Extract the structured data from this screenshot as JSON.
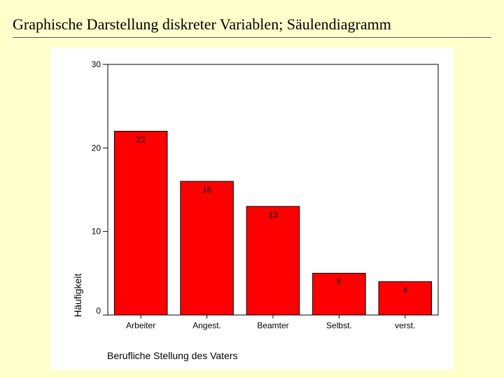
{
  "slide": {
    "title": "Graphische Darstellung diskreter Variablen; Säulendiagramm"
  },
  "chart_data": {
    "type": "bar",
    "categories": [
      "Arbeiter",
      "Angest.",
      "Beamter",
      "Selbst.",
      "verst."
    ],
    "values": [
      22,
      16,
      13,
      5,
      4
    ],
    "data_labels": [
      "22",
      "16",
      "13",
      "5",
      "4"
    ],
    "xlabel": "Berufliche Stellung des Vaters",
    "ylabel": "Häufigkeit",
    "ylim": [
      0,
      30
    ],
    "yticks": [
      0,
      10,
      20,
      30
    ],
    "bar_color": "#ff0000",
    "bar_edge_color": "#000000",
    "grid": false,
    "legend": "none"
  }
}
